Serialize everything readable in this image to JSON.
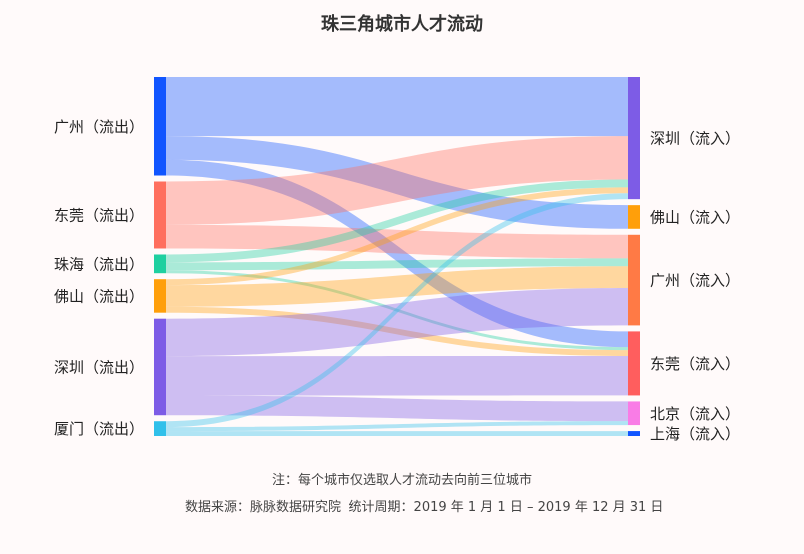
{
  "chart_data": {
    "type": "sankey",
    "title": "珠三角城市人才流动",
    "note": "注：每个城市仅选取人才流动去向前三位城市",
    "source": "数据来源：脉脉数据研究院",
    "period": "统计周期：2019 年 1 月 1 日 – 2019 年 12 月 31 日",
    "sources": [
      {
        "id": "gz_out",
        "label": "广州（流出）",
        "color": "#1155ff"
      },
      {
        "id": "dg_out",
        "label": "东莞（流出）",
        "color": "#ff6f5e"
      },
      {
        "id": "zh_out",
        "label": "珠海（流出）",
        "color": "#1fd0a0"
      },
      {
        "id": "fs_out",
        "label": "佛山（流出）",
        "color": "#ff9f0a"
      },
      {
        "id": "sz_out",
        "label": "深圳（流出）",
        "color": "#7d5ce6"
      },
      {
        "id": "xm_out",
        "label": "厦门（流出）",
        "color": "#30c0ea"
      }
    ],
    "targets": [
      {
        "id": "sz_in",
        "label": "深圳（流入）",
        "color": "#7d5ce6"
      },
      {
        "id": "fs_in",
        "label": "佛山（流入）",
        "color": "#ff9f0a"
      },
      {
        "id": "gz_in",
        "label": "广州（流入）",
        "color": "#ff7a45"
      },
      {
        "id": "dg_in",
        "label": "东莞（流入）",
        "color": "#ff5e5e"
      },
      {
        "id": "bj_in",
        "label": "北京（流入）",
        "color": "#f97ce6"
      },
      {
        "id": "sh_in",
        "label": "上海（流入）",
        "color": "#1155ff"
      }
    ],
    "links": [
      {
        "source": "gz_out",
        "target": "sz_in",
        "value": 30
      },
      {
        "source": "gz_out",
        "target": "fs_in",
        "value": 12
      },
      {
        "source": "gz_out",
        "target": "dg_in",
        "value": 8
      },
      {
        "source": "dg_out",
        "target": "sz_in",
        "value": 22
      },
      {
        "source": "dg_out",
        "target": "gz_in",
        "value": 12
      },
      {
        "source": "zh_out",
        "target": "sz_in",
        "value": 4
      },
      {
        "source": "zh_out",
        "target": "gz_in",
        "value": 4
      },
      {
        "source": "zh_out",
        "target": "dg_in",
        "value": 1.5
      },
      {
        "source": "fs_out",
        "target": "sz_in",
        "value": 3
      },
      {
        "source": "fs_out",
        "target": "gz_in",
        "value": 11
      },
      {
        "source": "fs_out",
        "target": "dg_in",
        "value": 3
      },
      {
        "source": "sz_out",
        "target": "gz_in",
        "value": 19
      },
      {
        "source": "sz_out",
        "target": "dg_in",
        "value": 20
      },
      {
        "source": "sz_out",
        "target": "bj_in",
        "value": 10
      },
      {
        "source": "xm_out",
        "target": "sz_in",
        "value": 3
      },
      {
        "source": "xm_out",
        "target": "bj_in",
        "value": 2
      },
      {
        "source": "xm_out",
        "target": "sh_in",
        "value": 2.5
      }
    ]
  }
}
